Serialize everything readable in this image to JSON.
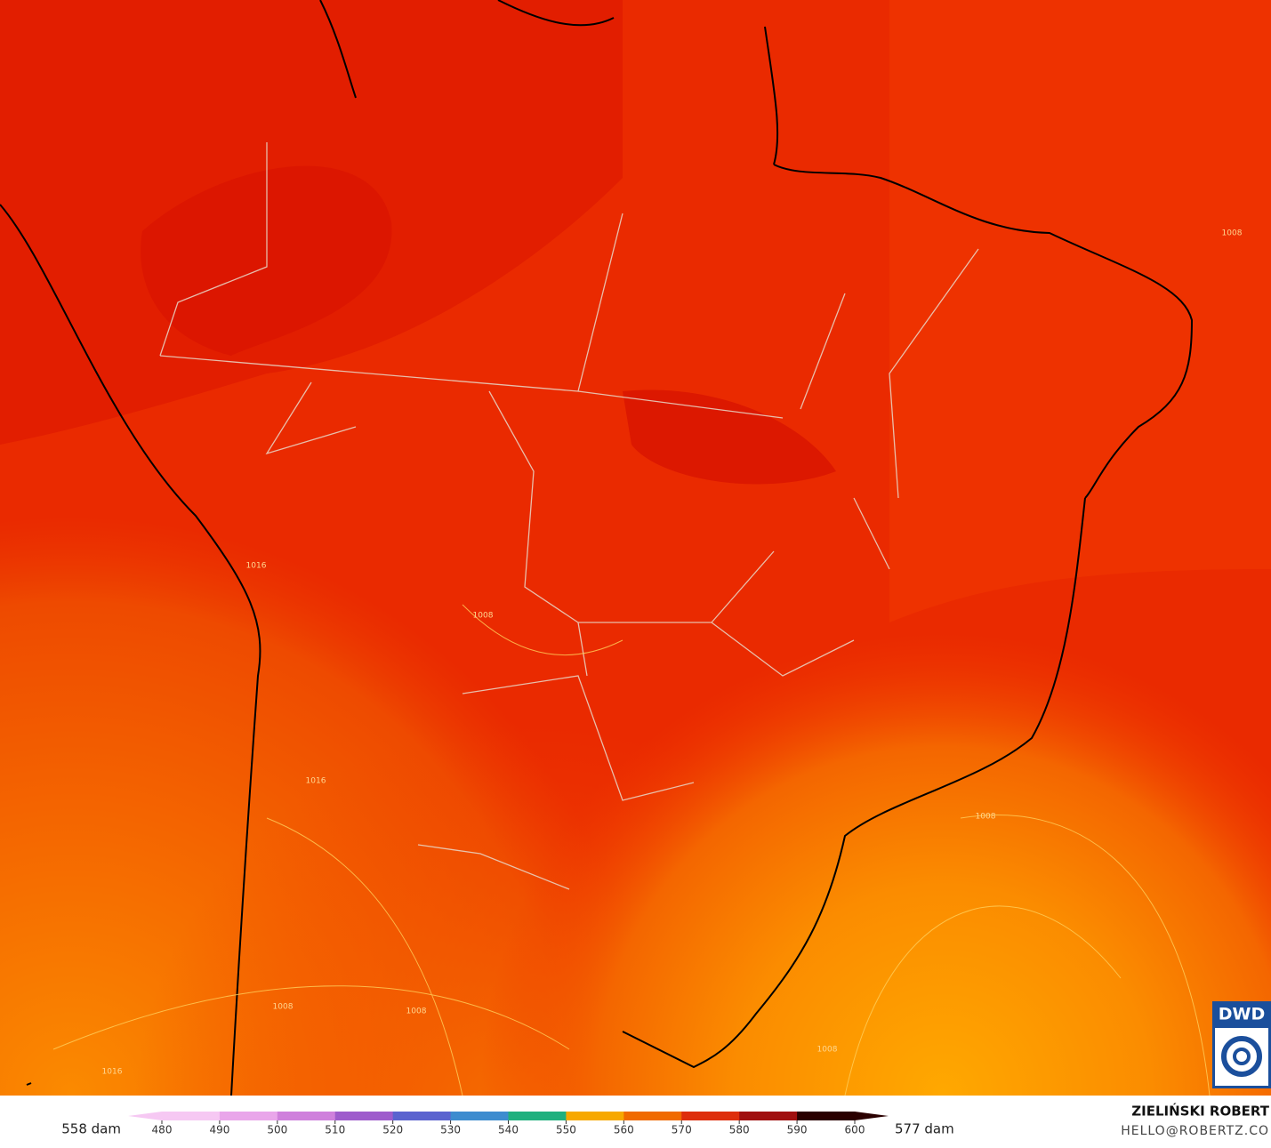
{
  "map": {
    "contour_labels": [
      "1008",
      "1016",
      "1008",
      "1008",
      "1008",
      "1008",
      "1016",
      "1008",
      "1016"
    ]
  },
  "logo": "DWD",
  "author": "ZIELIŃSKI ROBERT",
  "contact": "HELLO@ROBERTZ.CO",
  "colorbar": {
    "min_label": "558 dam",
    "max_label": "577 dam",
    "lim": [
      480,
      600
    ],
    "ticks": [
      480,
      490,
      500,
      510,
      520,
      530,
      540,
      550,
      560,
      570,
      580,
      590,
      600
    ],
    "colors": [
      "#f6c8f3",
      "#e9a6ea",
      "#cf80dc",
      "#9e5ccc",
      "#5a63cf",
      "#3d8ccf",
      "#1fb07e",
      "#f7a800",
      "#f06a00",
      "#de2e0c",
      "#a00f0f",
      "#2a0000"
    ]
  }
}
